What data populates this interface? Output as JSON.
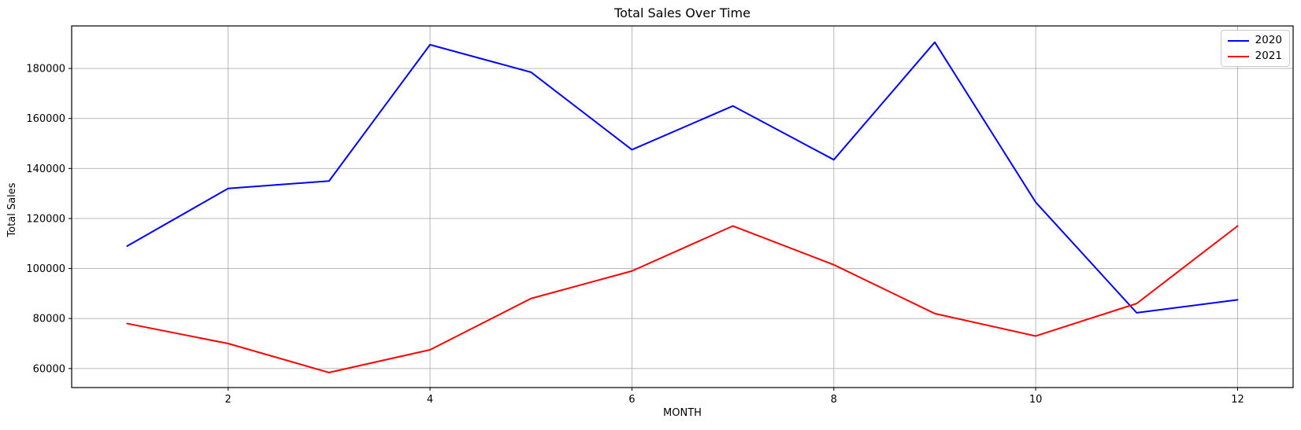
{
  "figure": {
    "title": "Total Sales Over Time",
    "xlabel": "MONTH",
    "ylabel": "Total Sales"
  },
  "chart_data": {
    "type": "line",
    "title": "Total Sales Over Time",
    "xlabel": "MONTH",
    "ylabel": "Total Sales",
    "x": [
      1,
      2,
      3,
      4,
      5,
      6,
      7,
      8,
      9,
      10,
      11,
      12
    ],
    "series": [
      {
        "name": "2020",
        "color": "#0000ff",
        "values": [
          109000,
          132000,
          135000,
          189500,
          178500,
          147500,
          165000,
          143500,
          190500,
          126500,
          82300,
          87500
        ]
      },
      {
        "name": "2021",
        "color": "#ff0000",
        "values": [
          78000,
          70000,
          58400,
          67500,
          88000,
          99000,
          117000,
          101500,
          82000,
          73000,
          86000,
          117000
        ]
      }
    ],
    "xticks": [
      2,
      4,
      6,
      8,
      10,
      12
    ],
    "yticks": [
      60000,
      80000,
      100000,
      120000,
      140000,
      160000,
      180000
    ],
    "xlim": [
      0.45,
      12.55
    ],
    "ylim": [
      52400,
      197000
    ],
    "grid": true,
    "legend_position": "upper right",
    "grid_color": "#b0b0b0",
    "axis_color": "#000000",
    "background": "#ffffff",
    "line_width": 2
  }
}
